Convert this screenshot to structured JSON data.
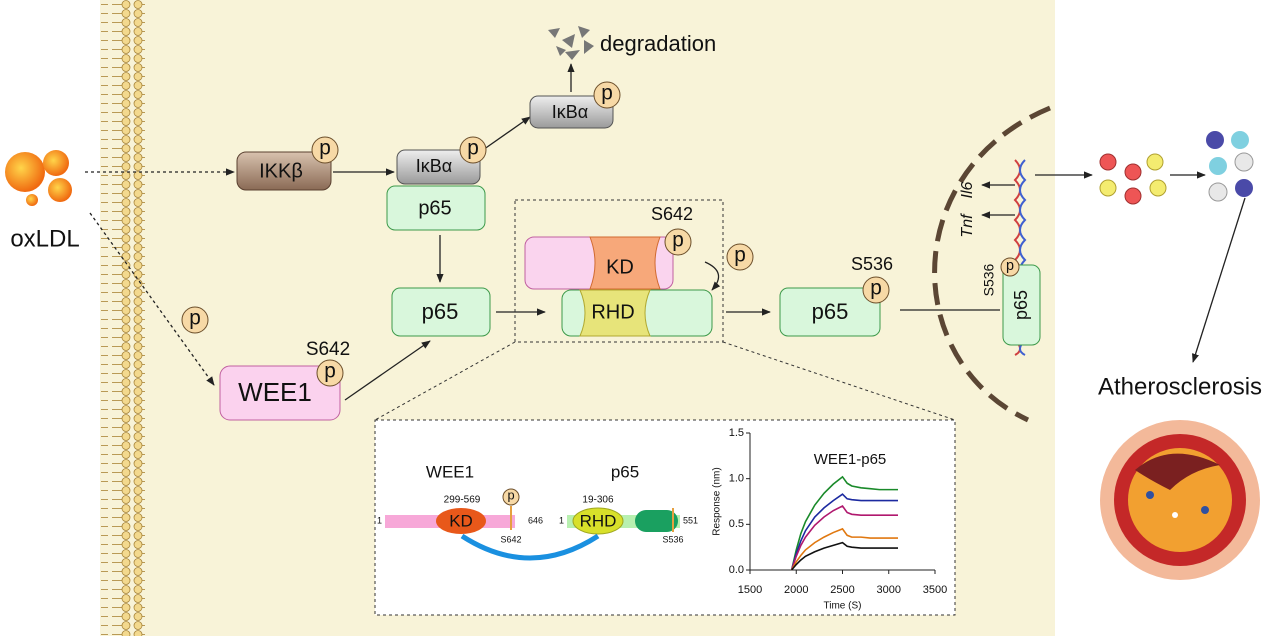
{
  "membrane_side": {
    "ligand": "oxLDL"
  },
  "nodes": {
    "ikkb": {
      "label": "IKKβ",
      "p": "p"
    },
    "ikba": {
      "label": "IκBα",
      "p": "p"
    },
    "p65_bound": {
      "label": "p65"
    },
    "ikba_top": {
      "label": "IκBα",
      "p": "p"
    },
    "degradation": "degradation",
    "p65_free": {
      "label": "p65"
    },
    "free_p_left": "p",
    "wee1": {
      "label": "WEE1",
      "p": "p",
      "site": "S642"
    },
    "complex": {
      "kd": "KD",
      "rhd": "RHD",
      "p": "p",
      "site": "S642",
      "free_p": "p"
    },
    "p65_phos": {
      "label": "p65",
      "p": "p",
      "site": "S536"
    },
    "genes": [
      "Tnf",
      "Il6"
    ],
    "p65_nuclear": {
      "label": "p65",
      "p": "p",
      "site": "S536"
    },
    "outcome": "Atherosclerosis"
  },
  "domain_map": {
    "wee1": {
      "name": "WEE1",
      "start": 1,
      "kd_range": "299-569",
      "kd": "KD",
      "end": 646,
      "site": "S642",
      "p": "p"
    },
    "p65": {
      "name": "p65",
      "start": 1,
      "rhd_range": "19-306",
      "rhd": "RHD",
      "end": 551,
      "site": "S536"
    }
  },
  "chart_data": {
    "type": "line",
    "title": "WEE1-p65",
    "x_label": "Time (S)",
    "y_label": "Response (nm)",
    "x": [
      1950,
      2000,
      2050,
      2100,
      2200,
      2300,
      2400,
      2500,
      2550,
      2600,
      2700,
      2800,
      2900,
      3000,
      3100
    ],
    "series": [
      {
        "color": "#1a8a2a",
        "values": [
          0,
          0.22,
          0.4,
          0.53,
          0.71,
          0.84,
          0.94,
          1.02,
          0.95,
          0.92,
          0.9,
          0.89,
          0.88,
          0.88,
          0.88
        ]
      },
      {
        "color": "#1c2aa0",
        "values": [
          0,
          0.18,
          0.32,
          0.43,
          0.58,
          0.68,
          0.76,
          0.83,
          0.78,
          0.77,
          0.76,
          0.76,
          0.76,
          0.76,
          0.76
        ]
      },
      {
        "color": "#b0186e",
        "values": [
          0,
          0.15,
          0.27,
          0.36,
          0.49,
          0.58,
          0.65,
          0.7,
          0.63,
          0.61,
          0.6,
          0.6,
          0.6,
          0.6,
          0.6
        ]
      },
      {
        "color": "#e07810",
        "values": [
          0,
          0.09,
          0.16,
          0.22,
          0.3,
          0.36,
          0.41,
          0.45,
          0.38,
          0.36,
          0.36,
          0.35,
          0.35,
          0.35,
          0.35
        ]
      },
      {
        "color": "#111111",
        "values": [
          0,
          0.06,
          0.11,
          0.15,
          0.2,
          0.24,
          0.27,
          0.3,
          0.26,
          0.25,
          0.24,
          0.24,
          0.24,
          0.24,
          0.24
        ]
      }
    ],
    "xlim": [
      1500,
      3500
    ],
    "xticks": [
      1500,
      2000,
      2500,
      3000,
      3500
    ],
    "ylim": [
      0,
      1.5
    ],
    "yticks": [
      {
        "value": 0,
        "label": "0.0"
      },
      {
        "value": 0.5,
        "label": "0.5"
      },
      {
        "value": 1,
        "label": "1.0"
      },
      {
        "value": 1.5,
        "label": "1.5"
      }
    ]
  }
}
